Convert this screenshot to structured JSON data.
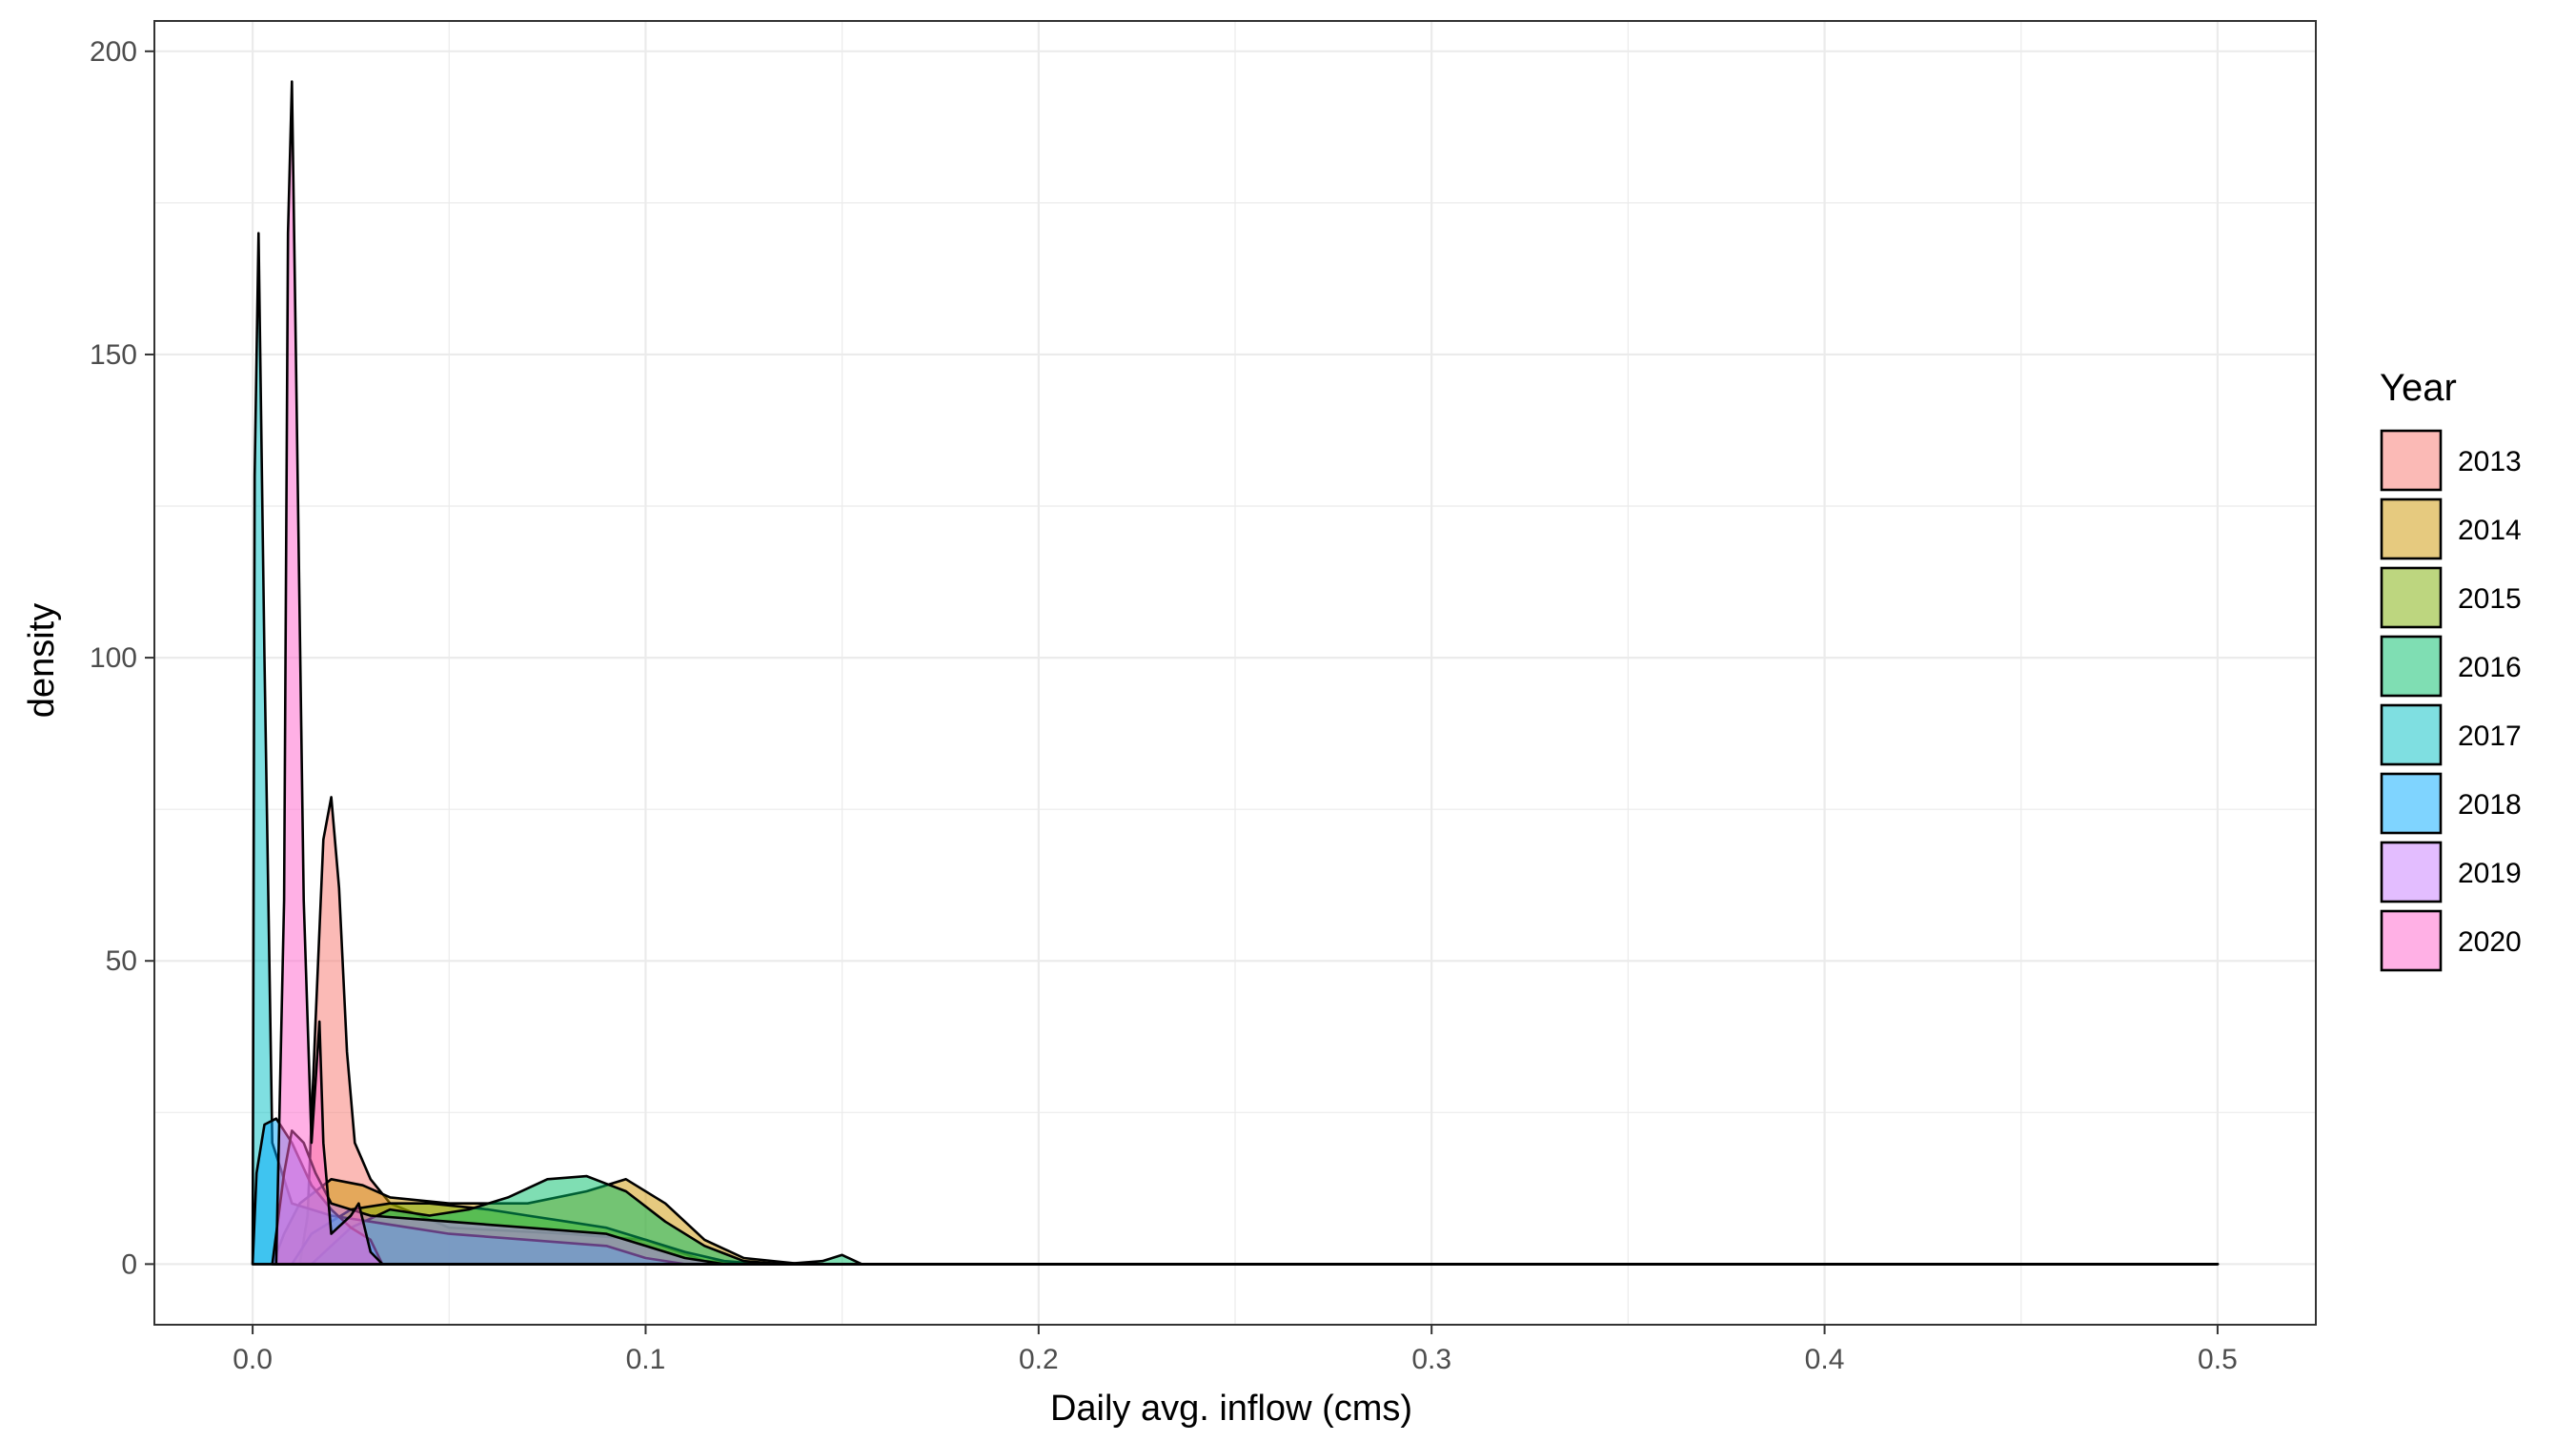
{
  "chart_data": {
    "type": "area",
    "subtype": "density",
    "title": "",
    "xlabel": "Daily avg. inflow (cms)",
    "ylabel": "density",
    "xlim": [
      -0.025,
      0.525
    ],
    "ylim": [
      -10,
      205
    ],
    "x_ticks": [
      0.0,
      0.1,
      0.2,
      0.3,
      0.4,
      0.5
    ],
    "x_tick_labels": [
      "0.0",
      "0.1",
      "0.2",
      "0.3",
      "0.4",
      "0.5"
    ],
    "y_ticks": [
      0,
      50,
      100,
      150,
      200
    ],
    "y_tick_labels": [
      "0",
      "50",
      "100",
      "150",
      "200"
    ],
    "grid": true,
    "legend": {
      "title": "Year",
      "position": "right"
    },
    "fill_opacity": 0.5,
    "series": [
      {
        "name": "2013",
        "color": "#F8766D",
        "points": [
          [
            0.012,
            0
          ],
          [
            0.014,
            8
          ],
          [
            0.016,
            40
          ],
          [
            0.018,
            70
          ],
          [
            0.02,
            77
          ],
          [
            0.022,
            62
          ],
          [
            0.024,
            35
          ],
          [
            0.026,
            20
          ],
          [
            0.03,
            14
          ],
          [
            0.035,
            10
          ],
          [
            0.05,
            6
          ],
          [
            0.08,
            5
          ],
          [
            0.1,
            4
          ],
          [
            0.115,
            0.5
          ],
          [
            0.13,
            0
          ],
          [
            0.5,
            0
          ]
        ]
      },
      {
        "name": "2014",
        "color": "#CD9600",
        "points": [
          [
            0.005,
            0
          ],
          [
            0.008,
            5
          ],
          [
            0.012,
            10
          ],
          [
            0.02,
            14
          ],
          [
            0.028,
            13
          ],
          [
            0.035,
            11
          ],
          [
            0.05,
            10
          ],
          [
            0.07,
            10
          ],
          [
            0.085,
            12
          ],
          [
            0.095,
            14
          ],
          [
            0.105,
            10
          ],
          [
            0.115,
            4
          ],
          [
            0.125,
            1
          ],
          [
            0.14,
            0
          ],
          [
            0.5,
            0
          ]
        ]
      },
      {
        "name": "2015",
        "color": "#7CAE00",
        "points": [
          [
            0.01,
            0
          ],
          [
            0.015,
            5
          ],
          [
            0.025,
            9
          ],
          [
            0.035,
            10
          ],
          [
            0.045,
            10
          ],
          [
            0.06,
            9
          ],
          [
            0.07,
            8
          ],
          [
            0.08,
            7
          ],
          [
            0.09,
            6
          ],
          [
            0.1,
            4
          ],
          [
            0.11,
            2
          ],
          [
            0.12,
            0.5
          ],
          [
            0.13,
            0
          ],
          [
            0.5,
            0
          ]
        ]
      },
      {
        "name": "2016",
        "color": "#00BE67",
        "points": [
          [
            0.015,
            0
          ],
          [
            0.025,
            6
          ],
          [
            0.035,
            9
          ],
          [
            0.045,
            8
          ],
          [
            0.055,
            9
          ],
          [
            0.065,
            11
          ],
          [
            0.075,
            14
          ],
          [
            0.085,
            14.5
          ],
          [
            0.095,
            12
          ],
          [
            0.105,
            7
          ],
          [
            0.115,
            3
          ],
          [
            0.125,
            0.5
          ],
          [
            0.135,
            0
          ],
          [
            0.145,
            0.5
          ],
          [
            0.15,
            1.5
          ],
          [
            0.155,
            0
          ],
          [
            0.5,
            0
          ]
        ]
      },
      {
        "name": "2017",
        "color": "#00BFC4",
        "points": [
          [
            0.0,
            0
          ],
          [
            0.0005,
            130
          ],
          [
            0.0015,
            170
          ],
          [
            0.003,
            100
          ],
          [
            0.005,
            20
          ],
          [
            0.01,
            10
          ],
          [
            0.02,
            8
          ],
          [
            0.03,
            7
          ],
          [
            0.04,
            6
          ],
          [
            0.05,
            5
          ],
          [
            0.07,
            4
          ],
          [
            0.09,
            3
          ],
          [
            0.1,
            1
          ],
          [
            0.11,
            0
          ],
          [
            0.5,
            0
          ]
        ]
      },
      {
        "name": "2018",
        "color": "#00A9FF",
        "points": [
          [
            0.0,
            0
          ],
          [
            0.001,
            15
          ],
          [
            0.003,
            23
          ],
          [
            0.006,
            24
          ],
          [
            0.01,
            20
          ],
          [
            0.015,
            13
          ],
          [
            0.02,
            9
          ],
          [
            0.025,
            6
          ],
          [
            0.03,
            4
          ],
          [
            0.033,
            0
          ],
          [
            0.5,
            0
          ]
        ]
      },
      {
        "name": "2019",
        "color": "#C77CFF",
        "points": [
          [
            0.005,
            0
          ],
          [
            0.008,
            15
          ],
          [
            0.01,
            22
          ],
          [
            0.013,
            20
          ],
          [
            0.016,
            15
          ],
          [
            0.02,
            10
          ],
          [
            0.03,
            8
          ],
          [
            0.05,
            7
          ],
          [
            0.07,
            6
          ],
          [
            0.09,
            5
          ],
          [
            0.1,
            3
          ],
          [
            0.11,
            1
          ],
          [
            0.12,
            0
          ],
          [
            0.5,
            0
          ]
        ]
      },
      {
        "name": "2020",
        "color": "#FF61CC",
        "points": [
          [
            0.006,
            0
          ],
          [
            0.008,
            60
          ],
          [
            0.009,
            170
          ],
          [
            0.01,
            195
          ],
          [
            0.011,
            150
          ],
          [
            0.013,
            60
          ],
          [
            0.015,
            20
          ],
          [
            0.016,
            30
          ],
          [
            0.017,
            40
          ],
          [
            0.018,
            20
          ],
          [
            0.02,
            5
          ],
          [
            0.025,
            8
          ],
          [
            0.027,
            10
          ],
          [
            0.03,
            2
          ],
          [
            0.033,
            0
          ],
          [
            0.5,
            0
          ]
        ]
      }
    ]
  }
}
